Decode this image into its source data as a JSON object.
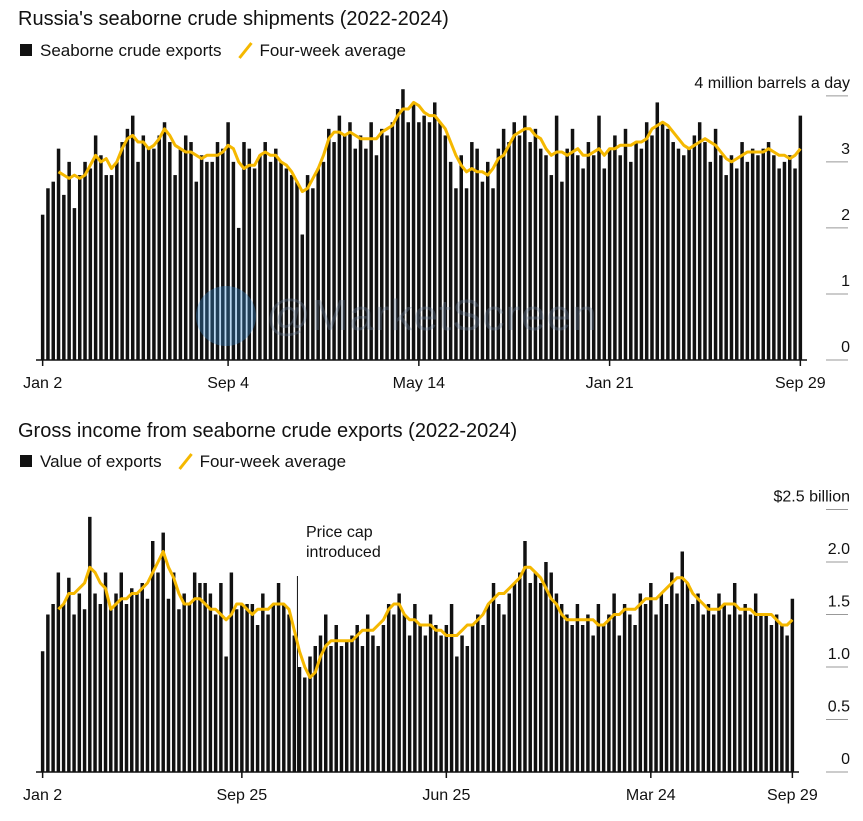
{
  "chart_data": [
    {
      "type": "bar",
      "title": "Russia's seaborne crude shipments (2022-2024)",
      "categories": [
        "Jan 2",
        null,
        null,
        null,
        null,
        null,
        null,
        null,
        null,
        null,
        null,
        null,
        null,
        null,
        null,
        null,
        null,
        null,
        null,
        null,
        null,
        null,
        null,
        null,
        null,
        null,
        null,
        null,
        null,
        null,
        null,
        null,
        null,
        null,
        null,
        "Sep 4",
        null,
        null,
        null,
        null,
        null,
        null,
        null,
        null,
        null,
        null,
        null,
        null,
        null,
        null,
        null,
        null,
        null,
        null,
        null,
        null,
        null,
        null,
        null,
        null,
        null,
        null,
        null,
        null,
        null,
        null,
        null,
        null,
        null,
        null,
        null,
        "May 14",
        null,
        null,
        null,
        null,
        null,
        null,
        null,
        null,
        null,
        null,
        null,
        null,
        null,
        null,
        null,
        null,
        null,
        null,
        null,
        null,
        null,
        null,
        null,
        null,
        null,
        null,
        null,
        null,
        null,
        null,
        null,
        null,
        null,
        null,
        null,
        "Jan 21",
        null,
        null,
        null,
        null,
        null,
        null,
        null,
        null,
        null,
        null,
        null,
        null,
        null,
        null,
        null,
        null,
        null,
        null,
        null,
        null,
        null,
        null,
        null,
        null,
        null,
        null,
        null,
        null,
        null,
        null,
        null,
        null,
        null,
        null,
        null,
        "Sep 29"
      ],
      "series": [
        {
          "name": "Seaborne crude exports",
          "type": "bar",
          "color": "#111111",
          "values": [
            2.2,
            2.6,
            2.7,
            3.2,
            2.5,
            3.0,
            2.3,
            2.8,
            3.0,
            2.9,
            3.4,
            3.1,
            2.8,
            2.8,
            3.0,
            3.3,
            3.5,
            3.7,
            3.0,
            3.4,
            3.2,
            3.2,
            3.4,
            3.6,
            3.3,
            2.8,
            3.2,
            3.4,
            3.3,
            2.7,
            3.1,
            3.0,
            3.0,
            3.3,
            3.2,
            3.6,
            3.0,
            2.0,
            3.3,
            3.2,
            2.9,
            3.1,
            3.3,
            3.0,
            3.2,
            3.0,
            2.9,
            2.8,
            2.7,
            1.9,
            2.8,
            2.6,
            2.9,
            3.0,
            3.5,
            3.3,
            3.7,
            3.4,
            3.6,
            3.2,
            3.4,
            3.2,
            3.6,
            3.1,
            3.5,
            3.4,
            3.6,
            3.8,
            4.1,
            3.6,
            3.9,
            3.6,
            3.7,
            3.6,
            3.9,
            3.6,
            3.4,
            3.0,
            2.6,
            3.1,
            2.6,
            3.3,
            3.2,
            2.7,
            3.0,
            2.6,
            3.2,
            3.5,
            3.3,
            3.6,
            3.4,
            3.7,
            3.3,
            3.5,
            3.2,
            3.1,
            2.8,
            3.7,
            2.7,
            3.2,
            3.5,
            3.1,
            2.9,
            3.3,
            3.1,
            3.7,
            2.9,
            3.2,
            3.4,
            3.1,
            3.5,
            3.0,
            3.3,
            3.2,
            3.6,
            3.4,
            3.9,
            3.6,
            3.5,
            3.3,
            3.2,
            3.1,
            3.2,
            3.4,
            3.6,
            3.3,
            3.0,
            3.5,
            3.1,
            2.8,
            3.1,
            2.9,
            3.3,
            3.0,
            3.2,
            3.1,
            3.2,
            3.3,
            3.1,
            2.9,
            3.0,
            3.1,
            2.9,
            3.7
          ]
        },
        {
          "name": "Four-week average",
          "type": "line",
          "color": "#f5b800",
          "values": [
            null,
            null,
            null,
            2.85,
            2.8,
            2.75,
            2.8,
            2.75,
            2.8,
            2.95,
            3.1,
            3.0,
            3.05,
            2.9,
            3.0,
            3.2,
            3.35,
            3.4,
            3.3,
            3.3,
            3.2,
            3.25,
            3.35,
            3.5,
            3.4,
            3.25,
            3.2,
            3.15,
            3.15,
            3.1,
            3.05,
            3.1,
            3.1,
            3.1,
            3.15,
            3.25,
            3.2,
            3.0,
            2.9,
            2.95,
            2.95,
            3.1,
            3.15,
            3.1,
            3.1,
            3.0,
            2.95,
            2.85,
            2.7,
            2.55,
            2.6,
            2.75,
            2.9,
            3.1,
            3.35,
            3.45,
            3.45,
            3.4,
            3.45,
            3.4,
            3.35,
            3.35,
            3.35,
            3.35,
            3.45,
            3.5,
            3.55,
            3.7,
            3.8,
            3.8,
            3.9,
            3.85,
            3.75,
            3.7,
            3.7,
            3.6,
            3.5,
            3.3,
            3.1,
            2.95,
            2.85,
            2.9,
            2.85,
            2.85,
            2.8,
            2.9,
            3.05,
            3.1,
            3.25,
            3.4,
            3.45,
            3.5,
            3.5,
            3.4,
            3.35,
            3.2,
            3.1,
            3.15,
            3.15,
            3.1,
            3.15,
            3.2,
            3.1,
            3.1,
            3.15,
            3.2,
            3.1,
            3.2,
            3.2,
            3.25,
            3.25,
            3.25,
            3.3,
            3.3,
            3.35,
            3.5,
            3.55,
            3.6,
            3.55,
            3.45,
            3.35,
            3.25,
            3.2,
            3.25,
            3.3,
            3.35,
            3.3,
            3.25,
            3.15,
            3.05,
            3.0,
            3.05,
            3.1,
            3.15,
            3.15,
            3.15,
            3.15,
            3.2,
            3.15,
            3.1,
            3.1,
            3.05,
            3.1,
            3.2
          ]
        }
      ],
      "ylim": [
        0,
        4.3
      ],
      "yticks": [
        0,
        1,
        2,
        3,
        {
          "value": 4,
          "label": "4 million barrels a day"
        }
      ]
    },
    {
      "type": "bar",
      "title": "Gross income from seaborne crude exports (2022-2024)",
      "categories": [
        "Jan 2",
        null,
        null,
        null,
        null,
        null,
        null,
        null,
        null,
        null,
        null,
        null,
        null,
        null,
        null,
        null,
        null,
        null,
        null,
        null,
        null,
        null,
        null,
        null,
        null,
        null,
        null,
        null,
        null,
        null,
        null,
        null,
        null,
        null,
        null,
        null,
        null,
        null,
        "Sep 25",
        null,
        null,
        null,
        null,
        null,
        null,
        null,
        null,
        null,
        null,
        null,
        null,
        null,
        null,
        null,
        null,
        null,
        null,
        null,
        null,
        null,
        null,
        null,
        null,
        null,
        null,
        null,
        null,
        null,
        null,
        null,
        null,
        null,
        null,
        null,
        null,
        null,
        null,
        "Jun 25",
        null,
        null,
        null,
        null,
        null,
        null,
        null,
        null,
        null,
        null,
        null,
        null,
        null,
        null,
        null,
        null,
        null,
        null,
        null,
        null,
        null,
        null,
        null,
        null,
        null,
        null,
        null,
        null,
        null,
        null,
        null,
        null,
        null,
        null,
        null,
        null,
        null,
        null,
        "Mar 24",
        null,
        null,
        null,
        null,
        null,
        null,
        null,
        null,
        null,
        null,
        null,
        null,
        null,
        null,
        null,
        null,
        null,
        null,
        null,
        null,
        null,
        null,
        null,
        null,
        null,
        null,
        "Sep 29"
      ],
      "series": [
        {
          "name": "Value of exports",
          "type": "bar",
          "color": "#111111",
          "values": [
            1.15,
            1.5,
            1.6,
            1.9,
            1.6,
            1.85,
            1.5,
            1.7,
            1.55,
            2.43,
            1.7,
            1.6,
            1.9,
            1.55,
            1.7,
            1.9,
            1.6,
            1.75,
            1.7,
            1.8,
            1.65,
            2.2,
            1.9,
            2.28,
            1.65,
            1.9,
            1.55,
            1.7,
            1.6,
            1.9,
            1.8,
            1.8,
            1.7,
            1.5,
            1.8,
            1.1,
            1.9,
            1.55,
            1.6,
            1.6,
            1.6,
            1.4,
            1.7,
            1.5,
            1.6,
            1.8,
            1.6,
            1.5,
            1.3,
            1.0,
            0.9,
            1.1,
            1.2,
            1.3,
            1.5,
            1.2,
            1.4,
            1.2,
            1.25,
            1.3,
            1.4,
            1.2,
            1.5,
            1.3,
            1.2,
            1.4,
            1.6,
            1.5,
            1.7,
            1.5,
            1.3,
            1.6,
            1.4,
            1.3,
            1.5,
            1.4,
            1.3,
            1.4,
            1.6,
            1.1,
            1.3,
            1.2,
            1.4,
            1.5,
            1.4,
            1.6,
            1.8,
            1.6,
            1.5,
            1.7,
            1.8,
            1.9,
            2.2,
            1.8,
            1.9,
            1.8,
            2.0,
            1.9,
            1.7,
            1.6,
            1.5,
            1.4,
            1.6,
            1.4,
            1.5,
            1.3,
            1.6,
            1.4,
            1.5,
            1.7,
            1.3,
            1.6,
            1.5,
            1.4,
            1.7,
            1.6,
            1.8,
            1.5,
            1.7,
            1.6,
            1.9,
            1.7,
            2.1,
            1.8,
            1.6,
            1.7,
            1.5,
            1.6,
            1.5,
            1.7,
            1.6,
            1.5,
            1.8,
            1.5,
            1.6,
            1.5,
            1.7,
            1.5,
            1.5,
            1.4,
            1.5,
            1.4,
            1.3,
            1.65
          ]
        },
        {
          "name": "Four-week average",
          "type": "line",
          "color": "#f5b800",
          "values": [
            null,
            null,
            null,
            1.55,
            1.6,
            1.7,
            1.7,
            1.75,
            1.8,
            1.95,
            1.9,
            1.8,
            1.75,
            1.55,
            1.6,
            1.65,
            1.65,
            1.7,
            1.7,
            1.75,
            1.8,
            1.9,
            2.0,
            2.1,
            1.95,
            1.85,
            1.7,
            1.6,
            1.6,
            1.65,
            1.65,
            1.6,
            1.55,
            1.55,
            1.5,
            1.45,
            1.5,
            1.6,
            1.6,
            1.55,
            1.5,
            1.55,
            1.55,
            1.55,
            1.6,
            1.6,
            1.6,
            1.55,
            1.35,
            1.15,
            1.0,
            0.9,
            0.95,
            1.1,
            1.2,
            1.25,
            1.25,
            1.25,
            1.25,
            1.25,
            1.3,
            1.35,
            1.35,
            1.35,
            1.4,
            1.45,
            1.55,
            1.6,
            1.6,
            1.5,
            1.45,
            1.45,
            1.4,
            1.4,
            1.4,
            1.35,
            1.35,
            1.3,
            1.3,
            1.3,
            1.35,
            1.4,
            1.4,
            1.45,
            1.5,
            1.6,
            1.65,
            1.7,
            1.7,
            1.75,
            1.8,
            1.85,
            1.95,
            1.95,
            1.9,
            1.85,
            1.75,
            1.65,
            1.6,
            1.5,
            1.45,
            1.45,
            1.45,
            1.45,
            1.45,
            1.45,
            1.4,
            1.4,
            1.45,
            1.5,
            1.5,
            1.55,
            1.55,
            1.55,
            1.6,
            1.65,
            1.65,
            1.65,
            1.7,
            1.75,
            1.8,
            1.85,
            1.85,
            1.8,
            1.7,
            1.65,
            1.6,
            1.55,
            1.55,
            1.55,
            1.6,
            1.6,
            1.6,
            1.55,
            1.55,
            1.55,
            1.5,
            1.5,
            1.5,
            1.5,
            1.45,
            1.4,
            1.4,
            1.45
          ]
        }
      ],
      "ylim": [
        0,
        2.6
      ],
      "yticks": [
        0,
        0.5,
        {
          "value": 1,
          "label": "1.0"
        },
        1.5,
        {
          "value": 2,
          "label": "2.0"
        },
        {
          "value": 2.5,
          "label": "$2.5 billion"
        }
      ],
      "annotation": "Price cap introduced"
    }
  ],
  "watermark": "@MarketScreen"
}
